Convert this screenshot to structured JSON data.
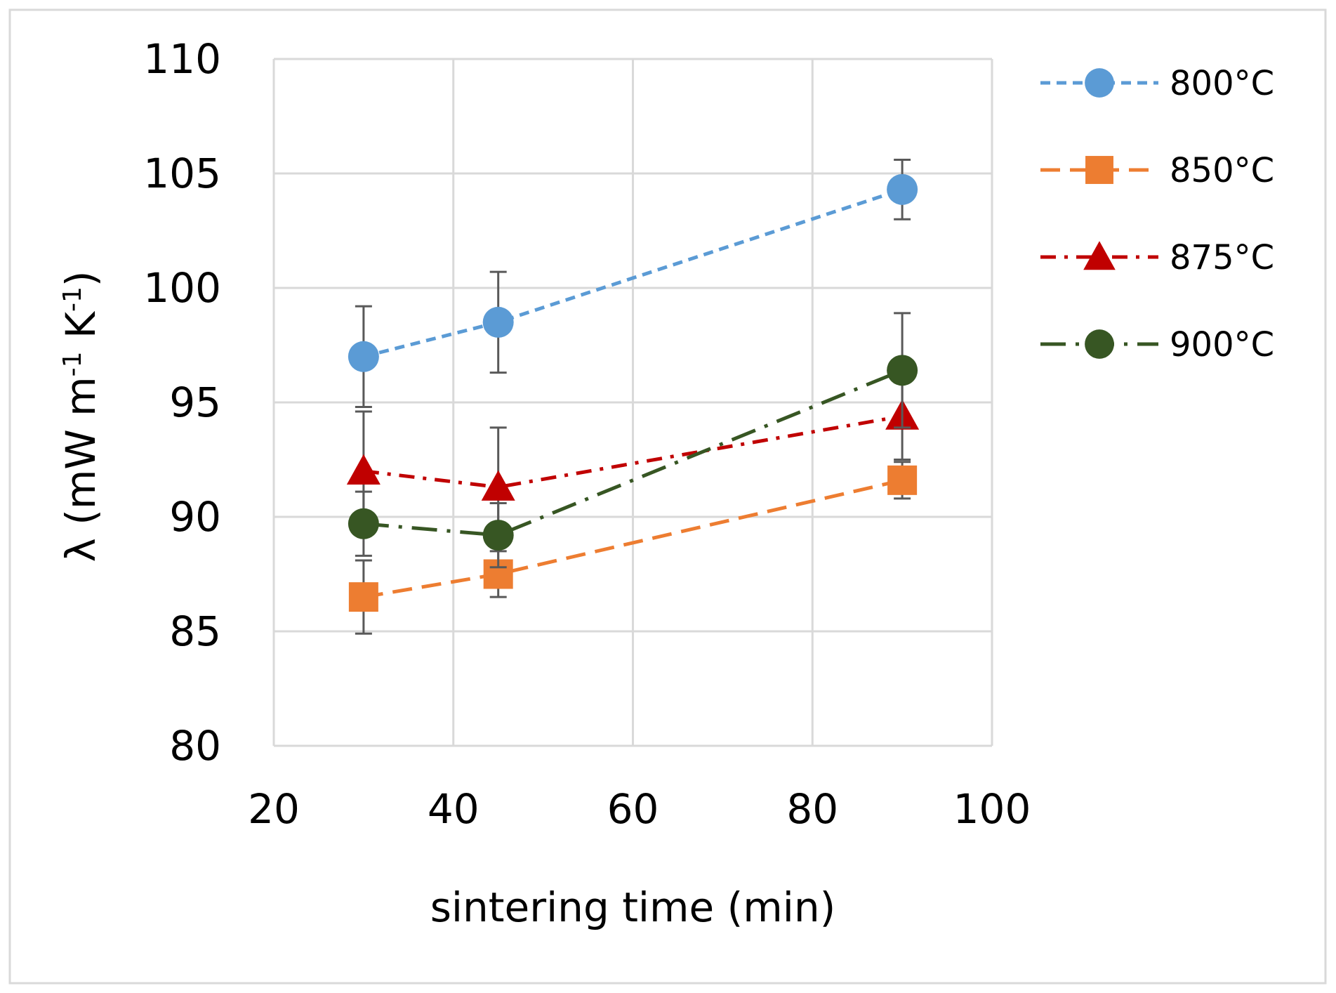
{
  "chart_data": {
    "type": "line",
    "title": "",
    "xlabel": "sintering time (min)",
    "ylabel": {
      "prefix": "λ (mW m",
      "sup1": "-1",
      "mid": " K",
      "sup2": "-1",
      "suffix": ")"
    },
    "xlim": [
      20,
      100
    ],
    "ylim": [
      80,
      110
    ],
    "xticks": [
      20,
      40,
      60,
      80,
      100
    ],
    "yticks": [
      80,
      85,
      90,
      95,
      100,
      105,
      110
    ],
    "x_tick_labels": [
      "20",
      "40",
      "60",
      "80",
      "100"
    ],
    "y_tick_labels": [
      "80",
      "85",
      "90",
      "95",
      "100",
      "105",
      "110"
    ],
    "grid": true,
    "legend_position": "right",
    "series": [
      {
        "name": "800°C",
        "color": "#5b9bd5",
        "marker": "circle",
        "line_style": "dash",
        "x": [
          30,
          45,
          90
        ],
        "y": [
          97.0,
          98.5,
          104.3
        ],
        "err": [
          2.2,
          2.2,
          1.3
        ]
      },
      {
        "name": "850°C",
        "color": "#ed7d31",
        "marker": "square",
        "line_style": "long-dash",
        "x": [
          30,
          45,
          90
        ],
        "y": [
          86.5,
          87.5,
          91.6
        ],
        "err": [
          1.6,
          1.0,
          0.8
        ]
      },
      {
        "name": "875°C",
        "color": "#c00000",
        "marker": "triangle",
        "line_style": "dash-dot",
        "x": [
          30,
          45,
          90
        ],
        "y": [
          92.0,
          91.3,
          94.4
        ],
        "err": [
          2.6,
          2.6,
          1.9
        ]
      },
      {
        "name": "900°C",
        "color": "#375623",
        "marker": "circle",
        "line_style": "long-dash-dot",
        "x": [
          30,
          45,
          90
        ],
        "y": [
          89.7,
          89.2,
          96.4
        ],
        "err": [
          1.4,
          1.4,
          2.5
        ]
      }
    ]
  }
}
